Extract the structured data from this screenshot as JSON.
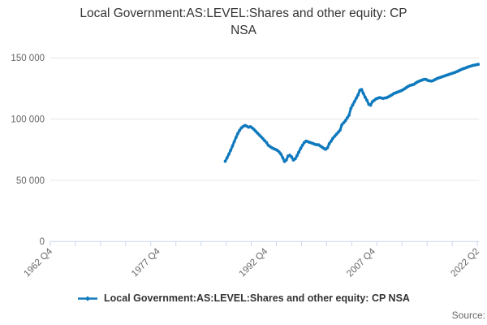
{
  "page": {
    "title_lines": [
      "Local Government:AS:LEVEL:Shares and other equity: CP",
      "NSA"
    ],
    "source_label": "Source:"
  },
  "legend": {
    "series_label": "Local Government:AS:LEVEL:Shares and other equity: CP NSA",
    "marker_color": "#0e79bc"
  },
  "chart_data": {
    "type": "line",
    "title": "Local Government:AS:LEVEL:Shares and other equity: CP NSA",
    "grid": true,
    "legend_position": "bottom",
    "colors": {
      "line": "#0e79bc",
      "gridline": "#e6e6e6",
      "axis": "#ccd6eb",
      "tick_label": "#666666"
    },
    "x_axis": {
      "range": [
        "1962 Q4",
        "2022 Q2"
      ],
      "total_categories": 239,
      "minor_tick_every": 14,
      "label_ticks": [
        {
          "label": "1962 Q4",
          "q": 0
        },
        {
          "label": "1977 Q4",
          "q": 60
        },
        {
          "label": "1992 Q4",
          "q": 120
        },
        {
          "label": "2007 Q4",
          "q": 180
        },
        {
          "label": "2022 Q2",
          "q": 238
        }
      ]
    },
    "y_axis": {
      "ylim": [
        0,
        157000
      ],
      "ticks": [
        {
          "label": "0",
          "value": 0
        },
        {
          "label": "50 000",
          "value": 50000
        },
        {
          "label": "100 000",
          "value": 100000
        },
        {
          "label": "150 000",
          "value": 150000
        }
      ]
    },
    "series": [
      {
        "name": "Local Government:AS:LEVEL:Shares and other equity: CP NSA",
        "color": "#0e79bc",
        "frequency": "quarterly",
        "start": "1987 Q1",
        "end": "2022 Q2",
        "start_category_index": 97,
        "values": [
          65500,
          68200,
          71200,
          74500,
          78000,
          81500,
          85000,
          88200,
          90800,
          92800,
          94000,
          94800,
          94200,
          93300,
          93800,
          92800,
          91500,
          90000,
          88500,
          87000,
          85500,
          84000,
          82300,
          80800,
          78500,
          77500,
          76500,
          75800,
          75200,
          74500,
          73200,
          71500,
          68500,
          65300,
          66500,
          69800,
          70500,
          69000,
          66500,
          67500,
          70000,
          73000,
          76000,
          78500,
          80800,
          82000,
          81500,
          81000,
          80500,
          80000,
          79400,
          79000,
          79000,
          78000,
          77000,
          76000,
          75300,
          76500,
          79900,
          82000,
          84300,
          86000,
          87700,
          89300,
          91000,
          95400,
          97000,
          98700,
          100900,
          103100,
          108700,
          111500,
          114200,
          117000,
          119700,
          123500,
          124200,
          120900,
          117800,
          115300,
          112000,
          111300,
          114200,
          115300,
          116400,
          117000,
          117500,
          117200,
          116900,
          117200,
          117500,
          118200,
          119000,
          119900,
          120900,
          121400,
          122000,
          122600,
          123100,
          123900,
          124800,
          125800,
          126800,
          127500,
          127900,
          128200,
          129200,
          130200,
          130900,
          131500,
          132000,
          132500,
          132300,
          131500,
          131200,
          131000,
          131500,
          132300,
          133100,
          133600,
          134100,
          134600,
          135100,
          135600,
          136100,
          136600,
          137100,
          137600,
          138100,
          138700,
          139400,
          140100,
          140800,
          141300,
          141800,
          142400,
          142900,
          143300,
          143800,
          144100,
          144400,
          144700
        ]
      }
    ]
  }
}
